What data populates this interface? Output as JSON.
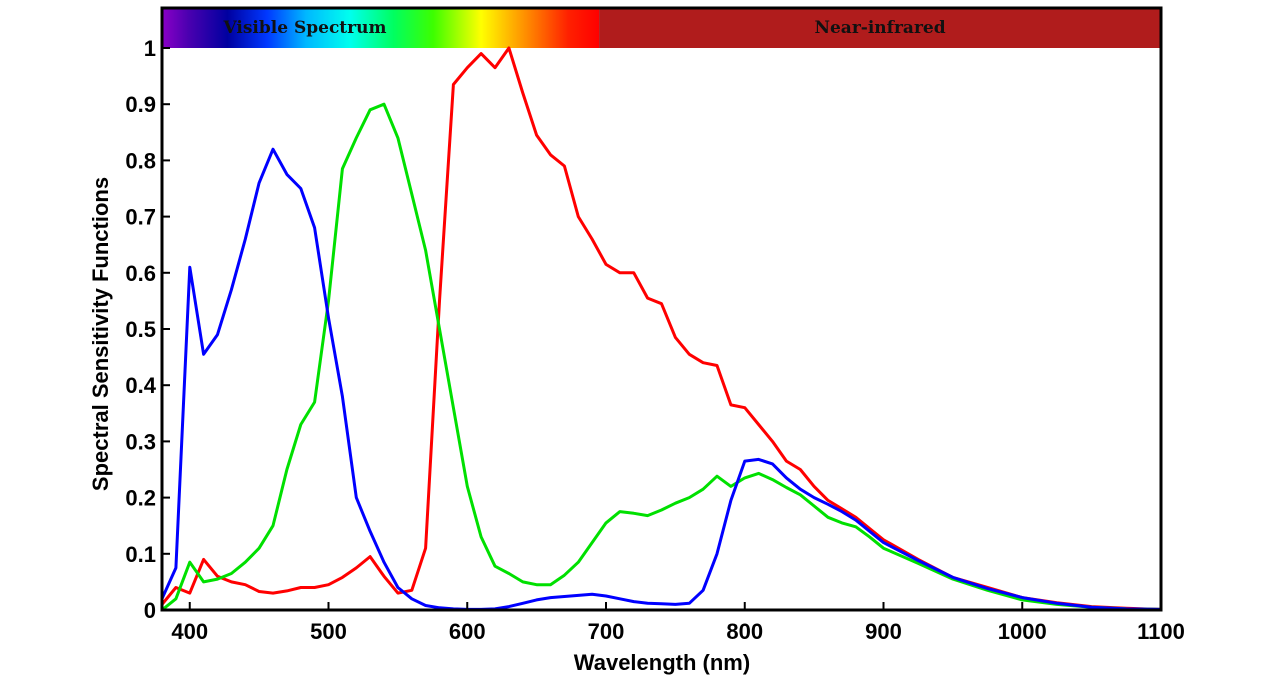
{
  "chart_data": {
    "type": "line",
    "xlabel": "Wavelength (nm)",
    "ylabel": "Spectral Sensitivity Functions",
    "xlim": [
      380,
      1100
    ],
    "ylim": [
      0,
      1
    ],
    "x_ticks": [
      400,
      500,
      600,
      700,
      800,
      900,
      1000,
      1100
    ],
    "y_ticks": [
      0,
      0.1,
      0.2,
      0.3,
      0.4,
      0.5,
      0.6,
      0.7,
      0.8,
      0.9,
      1
    ],
    "y_tick_labels": [
      "0",
      "0.1",
      "0.2",
      "0.3",
      "0.4",
      "0.5",
      "0.6",
      "0.7",
      "0.8",
      "0.9",
      "1"
    ],
    "grid": false,
    "bands": [
      {
        "label": "Visible Spectrum",
        "range": [
          380,
          695
        ]
      },
      {
        "label": "Near-infrared",
        "range": [
          695,
          1100
        ]
      }
    ],
    "series": [
      {
        "color": "#ff0000",
        "points": [
          [
            380,
            0.01
          ],
          [
            390,
            0.04
          ],
          [
            400,
            0.03
          ],
          [
            410,
            0.09
          ],
          [
            420,
            0.06
          ],
          [
            430,
            0.05
          ],
          [
            440,
            0.045
          ],
          [
            450,
            0.033
          ],
          [
            460,
            0.03
          ],
          [
            470,
            0.034
          ],
          [
            480,
            0.04
          ],
          [
            490,
            0.04
          ],
          [
            500,
            0.045
          ],
          [
            510,
            0.058
          ],
          [
            520,
            0.075
          ],
          [
            530,
            0.095
          ],
          [
            540,
            0.06
          ],
          [
            550,
            0.03
          ],
          [
            560,
            0.035
          ],
          [
            570,
            0.11
          ],
          [
            580,
            0.55
          ],
          [
            590,
            0.935
          ],
          [
            600,
            0.965
          ],
          [
            610,
            0.99
          ],
          [
            620,
            0.965
          ],
          [
            630,
            1.0
          ],
          [
            640,
            0.92
          ],
          [
            650,
            0.845
          ],
          [
            660,
            0.81
          ],
          [
            670,
            0.79
          ],
          [
            680,
            0.7
          ],
          [
            690,
            0.66
          ],
          [
            700,
            0.615
          ],
          [
            710,
            0.6
          ],
          [
            720,
            0.6
          ],
          [
            730,
            0.555
          ],
          [
            740,
            0.545
          ],
          [
            750,
            0.485
          ],
          [
            760,
            0.455
          ],
          [
            770,
            0.44
          ],
          [
            780,
            0.435
          ],
          [
            790,
            0.365
          ],
          [
            800,
            0.36
          ],
          [
            810,
            0.33
          ],
          [
            820,
            0.3
          ],
          [
            830,
            0.265
          ],
          [
            840,
            0.25
          ],
          [
            850,
            0.22
          ],
          [
            860,
            0.195
          ],
          [
            870,
            0.18
          ],
          [
            880,
            0.165
          ],
          [
            890,
            0.145
          ],
          [
            900,
            0.125
          ],
          [
            925,
            0.09
          ],
          [
            950,
            0.058
          ],
          [
            975,
            0.04
          ],
          [
            1000,
            0.022
          ],
          [
            1025,
            0.013
          ],
          [
            1050,
            0.006
          ],
          [
            1075,
            0.003
          ],
          [
            1100,
            0.001
          ]
        ]
      },
      {
        "color": "#00e000",
        "points": [
          [
            380,
            0.0
          ],
          [
            390,
            0.02
          ],
          [
            400,
            0.085
          ],
          [
            410,
            0.05
          ],
          [
            420,
            0.055
          ],
          [
            430,
            0.065
          ],
          [
            440,
            0.085
          ],
          [
            450,
            0.11
          ],
          [
            460,
            0.15
          ],
          [
            470,
            0.25
          ],
          [
            480,
            0.33
          ],
          [
            490,
            0.37
          ],
          [
            500,
            0.55
          ],
          [
            510,
            0.785
          ],
          [
            520,
            0.84
          ],
          [
            530,
            0.89
          ],
          [
            540,
            0.9
          ],
          [
            550,
            0.84
          ],
          [
            560,
            0.74
          ],
          [
            570,
            0.64
          ],
          [
            580,
            0.5
          ],
          [
            590,
            0.36
          ],
          [
            600,
            0.22
          ],
          [
            610,
            0.13
          ],
          [
            620,
            0.078
          ],
          [
            630,
            0.065
          ],
          [
            640,
            0.05
          ],
          [
            650,
            0.045
          ],
          [
            660,
            0.045
          ],
          [
            670,
            0.062
          ],
          [
            680,
            0.085
          ],
          [
            690,
            0.12
          ],
          [
            700,
            0.155
          ],
          [
            710,
            0.175
          ],
          [
            720,
            0.172
          ],
          [
            730,
            0.168
          ],
          [
            740,
            0.178
          ],
          [
            750,
            0.19
          ],
          [
            760,
            0.2
          ],
          [
            770,
            0.215
          ],
          [
            780,
            0.238
          ],
          [
            790,
            0.22
          ],
          [
            800,
            0.235
          ],
          [
            810,
            0.243
          ],
          [
            820,
            0.232
          ],
          [
            830,
            0.218
          ],
          [
            840,
            0.205
          ],
          [
            850,
            0.185
          ],
          [
            860,
            0.165
          ],
          [
            870,
            0.155
          ],
          [
            880,
            0.148
          ],
          [
            890,
            0.13
          ],
          [
            900,
            0.11
          ],
          [
            925,
            0.083
          ],
          [
            950,
            0.055
          ],
          [
            975,
            0.035
          ],
          [
            1000,
            0.018
          ],
          [
            1025,
            0.01
          ],
          [
            1050,
            0.005
          ],
          [
            1075,
            0.002
          ],
          [
            1100,
            0.001
          ]
        ]
      },
      {
        "color": "#0000ff",
        "points": [
          [
            380,
            0.02
          ],
          [
            390,
            0.075
          ],
          [
            400,
            0.61
          ],
          [
            410,
            0.455
          ],
          [
            420,
            0.49
          ],
          [
            430,
            0.57
          ],
          [
            440,
            0.66
          ],
          [
            450,
            0.76
          ],
          [
            460,
            0.82
          ],
          [
            470,
            0.775
          ],
          [
            480,
            0.75
          ],
          [
            490,
            0.68
          ],
          [
            500,
            0.52
          ],
          [
            510,
            0.38
          ],
          [
            520,
            0.2
          ],
          [
            530,
            0.14
          ],
          [
            540,
            0.085
          ],
          [
            550,
            0.04
          ],
          [
            560,
            0.02
          ],
          [
            570,
            0.008
          ],
          [
            580,
            0.004
          ],
          [
            590,
            0.002
          ],
          [
            600,
            0.001
          ],
          [
            610,
            0.001
          ],
          [
            620,
            0.002
          ],
          [
            630,
            0.006
          ],
          [
            640,
            0.012
          ],
          [
            650,
            0.018
          ],
          [
            660,
            0.022
          ],
          [
            670,
            0.024
          ],
          [
            680,
            0.026
          ],
          [
            690,
            0.028
          ],
          [
            700,
            0.025
          ],
          [
            710,
            0.02
          ],
          [
            720,
            0.015
          ],
          [
            730,
            0.012
          ],
          [
            740,
            0.011
          ],
          [
            750,
            0.01
          ],
          [
            760,
            0.012
          ],
          [
            770,
            0.035
          ],
          [
            780,
            0.1
          ],
          [
            790,
            0.195
          ],
          [
            800,
            0.265
          ],
          [
            810,
            0.268
          ],
          [
            820,
            0.26
          ],
          [
            830,
            0.235
          ],
          [
            840,
            0.215
          ],
          [
            850,
            0.2
          ],
          [
            860,
            0.188
          ],
          [
            870,
            0.175
          ],
          [
            880,
            0.16
          ],
          [
            890,
            0.14
          ],
          [
            900,
            0.12
          ],
          [
            925,
            0.088
          ],
          [
            950,
            0.058
          ],
          [
            975,
            0.038
          ],
          [
            1000,
            0.022
          ],
          [
            1025,
            0.012
          ],
          [
            1050,
            0.005
          ],
          [
            1075,
            0.002
          ],
          [
            1100,
            0.001
          ]
        ]
      }
    ]
  }
}
